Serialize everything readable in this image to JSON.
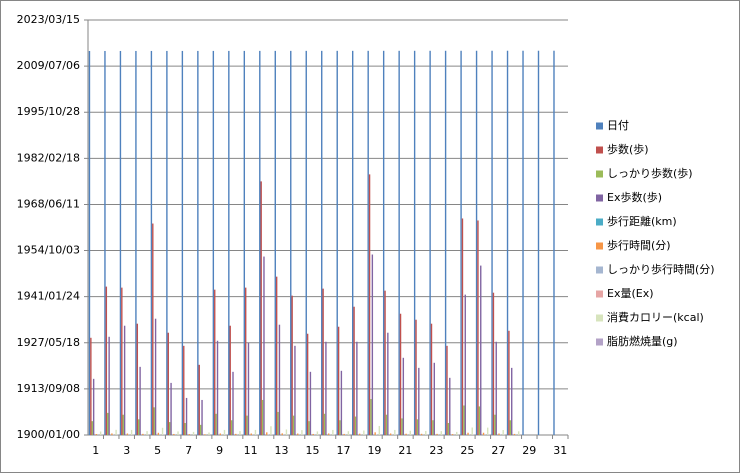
{
  "chart_data": {
    "type": "bar",
    "categories": [
      1,
      null,
      3,
      null,
      5,
      null,
      7,
      null,
      9,
      null,
      11,
      null,
      13,
      null,
      15,
      null,
      17,
      null,
      19,
      null,
      21,
      null,
      23,
      null,
      25,
      null,
      27,
      null,
      29,
      null,
      31
    ],
    "ylim": [
      0,
      45000
    ],
    "yticks": [
      {
        "value": 0,
        "label": "1900/01/00"
      },
      {
        "value": 5000,
        "label": "1913/09/08"
      },
      {
        "value": 10000,
        "label": "1927/05/18"
      },
      {
        "value": 15000,
        "label": "1941/01/24"
      },
      {
        "value": 20000,
        "label": "1954/10/03"
      },
      {
        "value": 25000,
        "label": "1968/06/11"
      },
      {
        "value": 30000,
        "label": "1982/02/18"
      },
      {
        "value": 35000,
        "label": "1995/10/28"
      },
      {
        "value": 40000,
        "label": "2009/07/06"
      },
      {
        "value": 45000,
        "label": "2023/03/15"
      }
    ],
    "grid": true,
    "series": [
      {
        "name": "日付",
        "color": "#4F81BD",
        "values": [
          41640,
          41641,
          41642,
          41643,
          41644,
          41645,
          41646,
          41647,
          41648,
          41649,
          41650,
          41651,
          41652,
          41653,
          41654,
          41655,
          41656,
          41657,
          41658,
          41659,
          41660,
          41661,
          41662,
          41663,
          41664,
          41665,
          41666,
          41667,
          41668,
          41669,
          41670
        ]
      },
      {
        "name": "歩数(歩)",
        "color": "#C0504D",
        "values": [
          10540,
          16090,
          15980,
          12070,
          22930,
          11090,
          9670,
          7610,
          15760,
          11850,
          15980,
          27500,
          17170,
          15110,
          10980,
          15870,
          11740,
          13910,
          28260,
          15650,
          13150,
          12500,
          12070,
          9670,
          23480,
          23260,
          15430,
          11300,
          null,
          null,
          null
        ]
      },
      {
        "name": "しっかり歩数(歩)",
        "color": "#9BBB59",
        "values": [
          1500,
          2400,
          2200,
          1700,
          3000,
          1400,
          1300,
          1100,
          2300,
          1600,
          2100,
          3800,
          2500,
          2100,
          1500,
          2300,
          1600,
          2000,
          3900,
          2200,
          1800,
          1700,
          1600,
          1300,
          3200,
          3100,
          2200,
          1600,
          null,
          null,
          null
        ]
      },
      {
        "name": "Ex歩数(歩)",
        "color": "#8064A2",
        "values": [
          6090,
          10650,
          11850,
          7390,
          12610,
          5650,
          4020,
          3800,
          10220,
          6850,
          10000,
          19350,
          11960,
          9670,
          6850,
          10110,
          6960,
          10110,
          19570,
          11090,
          8370,
          7280,
          7830,
          6200,
          15220,
          18370,
          10110,
          7280,
          null,
          null,
          null
        ]
      },
      {
        "name": "歩行距離(km)",
        "color": "#4BACC6",
        "values": [
          7,
          11,
          11,
          8,
          16,
          8,
          7,
          5,
          11,
          8,
          11,
          19,
          12,
          11,
          8,
          11,
          8,
          10,
          20,
          11,
          9,
          9,
          8,
          7,
          16,
          16,
          11,
          8,
          null,
          null,
          null
        ]
      },
      {
        "name": "歩行時間(分)",
        "color": "#F79646",
        "values": [
          110,
          170,
          165,
          125,
          240,
          115,
          100,
          80,
          165,
          125,
          165,
          290,
          180,
          160,
          115,
          165,
          120,
          145,
          295,
          165,
          140,
          130,
          125,
          100,
          245,
          245,
          160,
          120,
          null,
          null,
          null
        ]
      },
      {
        "name": "しっかり歩行時間(分)",
        "color": "#A5B6D0",
        "values": [
          20,
          32,
          30,
          22,
          40,
          18,
          16,
          14,
          30,
          22,
          28,
          52,
          34,
          28,
          20,
          30,
          22,
          27,
          53,
          30,
          24,
          23,
          22,
          18,
          43,
          42,
          30,
          22,
          null,
          null,
          null
        ]
      },
      {
        "name": "Ex量(Ex)",
        "color": "#E6A5A4",
        "values": [
          2,
          3,
          3,
          2,
          4,
          2,
          1,
          1,
          3,
          2,
          3,
          6,
          3,
          3,
          2,
          3,
          2,
          3,
          6,
          3,
          2,
          2,
          2,
          2,
          5,
          5,
          3,
          2,
          null,
          null,
          null
        ]
      },
      {
        "name": "消費カロリー(kcal)",
        "color": "#D7E4BD",
        "values": [
          380,
          560,
          550,
          420,
          780,
          390,
          340,
          270,
          550,
          420,
          550,
          950,
          600,
          530,
          390,
          550,
          410,
          490,
          980,
          550,
          460,
          440,
          420,
          340,
          810,
          800,
          540,
          400,
          null,
          null,
          null
        ]
      },
      {
        "name": "脂肪燃焼量(g)",
        "color": "#B3A2C7",
        "values": [
          26,
          40,
          39,
          30,
          56,
          27,
          24,
          19,
          39,
          29,
          39,
          68,
          42,
          37,
          27,
          39,
          29,
          34,
          70,
          38,
          32,
          31,
          29,
          24,
          58,
          57,
          38,
          28,
          null,
          null,
          null
        ]
      }
    ]
  }
}
